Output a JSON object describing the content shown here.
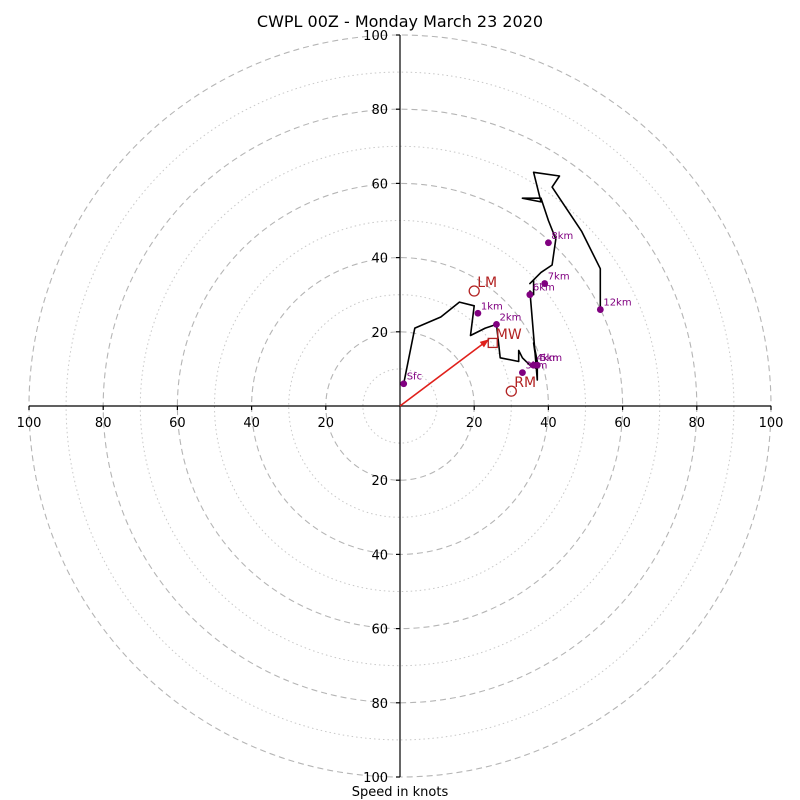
{
  "chart_data": {
    "type": "scatter",
    "title": "CWPL 00Z - Monday March 23 2020",
    "xlabel": "Speed in knots",
    "xlim": [
      -100,
      100
    ],
    "ylim": [
      -100,
      100
    ],
    "rings_major": [
      20,
      40,
      60,
      80,
      100
    ],
    "rings_minor": [
      10,
      30,
      50,
      70,
      90
    ],
    "x_tick_labels": [
      "100",
      "80",
      "60",
      "40",
      "20",
      "20",
      "40",
      "60",
      "80",
      "100"
    ],
    "x_tick_values": [
      -100,
      -80,
      -60,
      -40,
      -20,
      20,
      40,
      60,
      80,
      100
    ],
    "y_tick_labels": [
      "100",
      "80",
      "60",
      "40",
      "20",
      "20",
      "40",
      "60",
      "80",
      "100"
    ],
    "y_tick_values": [
      100,
      80,
      60,
      40,
      20,
      -20,
      -40,
      -60,
      -80,
      -100
    ],
    "grid": true,
    "hodograph": {
      "u": [
        1,
        4,
        11,
        16,
        20,
        19,
        23,
        26,
        27,
        32,
        32,
        33,
        35,
        37,
        36,
        37,
        37,
        35,
        36,
        36,
        35,
        38,
        41,
        42,
        40,
        38,
        33,
        38,
        36,
        43,
        41,
        49,
        54,
        54
      ],
      "v": [
        6,
        21,
        24,
        28,
        27,
        19,
        21,
        22,
        13,
        12,
        15,
        13,
        11,
        10,
        17,
        12,
        7,
        31,
        30,
        34,
        33,
        36,
        38,
        45,
        50,
        56,
        56,
        55,
        63,
        62,
        59,
        47,
        37,
        26
      ]
    },
    "height_markers": [
      {
        "label": "Sfc",
        "u": 1,
        "v": 6
      },
      {
        "label": "1km",
        "u": 21,
        "v": 25
      },
      {
        "label": "2km",
        "u": 26,
        "v": 22
      },
      {
        "label": "3km",
        "u": 33,
        "v": 9
      },
      {
        "label": "4km",
        "u": 36,
        "v": 11
      },
      {
        "label": "5km",
        "u": 37,
        "v": 11
      },
      {
        "label": "6km",
        "u": 35,
        "v": 30
      },
      {
        "label": "7km",
        "u": 39,
        "v": 33
      },
      {
        "label": "8km",
        "u": 40,
        "v": 44
      },
      {
        "label": "12km",
        "u": 54,
        "v": 26
      }
    ],
    "storm_motion": [
      {
        "label": "LM",
        "marker": "circle",
        "u": 20,
        "v": 31
      },
      {
        "label": "MW",
        "marker": "square",
        "u": 25,
        "v": 17
      },
      {
        "label": "RM",
        "marker": "circle",
        "u": 30,
        "v": 4
      }
    ],
    "shear_vector": {
      "u": 24,
      "v": 18
    },
    "colors": {
      "hodograph": "#000000",
      "markers": "#800080",
      "storm_motion": "#b22222",
      "shear_vector": "#e0201b",
      "grid": "#b5b5b5"
    }
  }
}
